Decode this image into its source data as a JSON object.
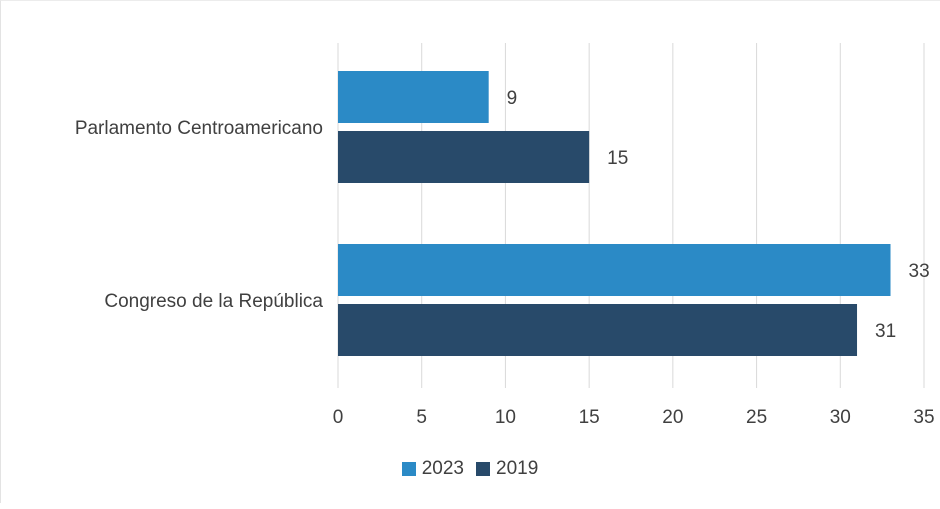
{
  "chart_data": {
    "type": "bar",
    "orientation": "horizontal",
    "categories": [
      "Parlamento Centroamericano",
      "Congreso de la República"
    ],
    "series": [
      {
        "name": "2023",
        "values": [
          9,
          33
        ],
        "color": "#2b8ac6"
      },
      {
        "name": "2019",
        "values": [
          15,
          31
        ],
        "color": "#284a6a"
      }
    ],
    "xlim": [
      0,
      35
    ],
    "x_ticks": [
      0,
      5,
      10,
      15,
      20,
      25,
      30,
      35
    ],
    "grid": "vertical",
    "legend_position": "bottom-center",
    "title": "",
    "xlabel": "",
    "ylabel": ""
  }
}
